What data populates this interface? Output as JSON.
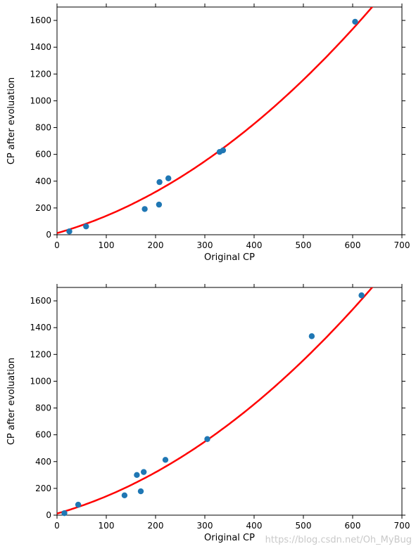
{
  "watermark": "https://blog.csdn.net/Oh_MyBug",
  "colors": {
    "points": "#1f77b4",
    "fit_line": "#ff0000",
    "axes": "#000000"
  },
  "chart_data": [
    {
      "type": "scatter",
      "xlabel": "Original CP",
      "ylabel": "CP after evoluation",
      "xlim": [
        0,
        700
      ],
      "ylim": [
        0,
        1700
      ],
      "xticks": [
        0,
        100,
        200,
        300,
        400,
        500,
        600,
        700
      ],
      "yticks": [
        0,
        200,
        400,
        600,
        800,
        1000,
        1200,
        1400,
        1600
      ],
      "grid": false,
      "points": [
        {
          "x": 25,
          "y": 25
        },
        {
          "x": 59,
          "y": 62
        },
        {
          "x": 178,
          "y": 192
        },
        {
          "x": 207,
          "y": 225
        },
        {
          "x": 208,
          "y": 393
        },
        {
          "x": 226,
          "y": 421
        },
        {
          "x": 330,
          "y": 618
        },
        {
          "x": 337,
          "y": 630
        },
        {
          "x": 605,
          "y": 1590
        }
      ],
      "fit_curve": {
        "type": "line",
        "b": 12,
        "w1": 1.04,
        "w2": 0.0025
      }
    },
    {
      "type": "scatter",
      "xlabel": "Original CP",
      "ylabel": "CP after evoluation",
      "xlim": [
        0,
        700
      ],
      "ylim": [
        0,
        1700
      ],
      "xticks": [
        0,
        100,
        200,
        300,
        400,
        500,
        600,
        700
      ],
      "yticks": [
        0,
        200,
        400,
        600,
        800,
        1000,
        1200,
        1400,
        1600
      ],
      "grid": false,
      "points": [
        {
          "x": 15,
          "y": 15
        },
        {
          "x": 43,
          "y": 78
        },
        {
          "x": 137,
          "y": 148
        },
        {
          "x": 162,
          "y": 300
        },
        {
          "x": 170,
          "y": 178
        },
        {
          "x": 176,
          "y": 322
        },
        {
          "x": 220,
          "y": 413
        },
        {
          "x": 305,
          "y": 568
        },
        {
          "x": 517,
          "y": 1336
        },
        {
          "x": 618,
          "y": 1641
        }
      ],
      "fit_curve": {
        "type": "line",
        "b": 12,
        "w1": 1.04,
        "w2": 0.0025
      }
    }
  ]
}
